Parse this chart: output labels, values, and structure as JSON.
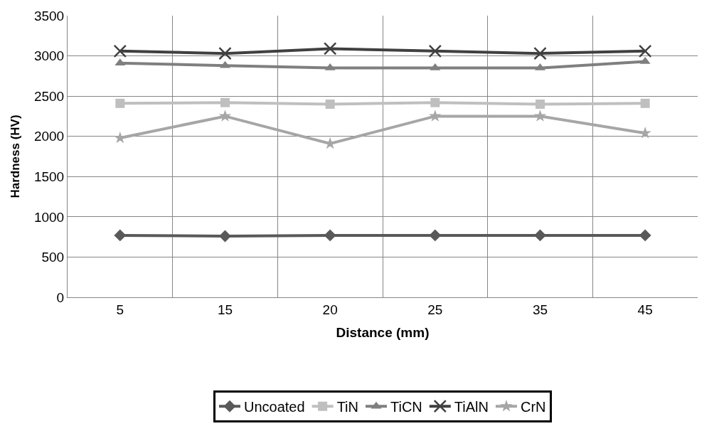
{
  "chart_data": {
    "type": "line",
    "xlabel": "Distance (mm)",
    "ylabel": "Hardness (HV)",
    "categories": [
      "5",
      "15",
      "20",
      "25",
      "35",
      "45"
    ],
    "ylim": [
      0,
      3500
    ],
    "yticks": [
      0,
      500,
      1000,
      1500,
      2000,
      2500,
      3000,
      3500
    ],
    "grid": true,
    "legend": "bottom",
    "line_style": "solid",
    "series": [
      {
        "name": "Uncoated",
        "color": "#595959",
        "marker": "diamond",
        "values": [
          770,
          760,
          770,
          770,
          770,
          770
        ]
      },
      {
        "name": "TiN",
        "color": "#bfbfbf",
        "marker": "square",
        "values": [
          2410,
          2420,
          2400,
          2420,
          2400,
          2410
        ]
      },
      {
        "name": "TiCN",
        "color": "#7f7f7f",
        "marker": "triangle",
        "values": [
          2910,
          2880,
          2850,
          2850,
          2850,
          2930
        ]
      },
      {
        "name": "TiAlN",
        "color": "#404040",
        "marker": "cross",
        "values": [
          3060,
          3030,
          3090,
          3060,
          3030,
          3060
        ]
      },
      {
        "name": "CrN",
        "color": "#a6a6a6",
        "marker": "star",
        "values": [
          1980,
          2250,
          1910,
          2250,
          2250,
          2040
        ]
      }
    ]
  }
}
